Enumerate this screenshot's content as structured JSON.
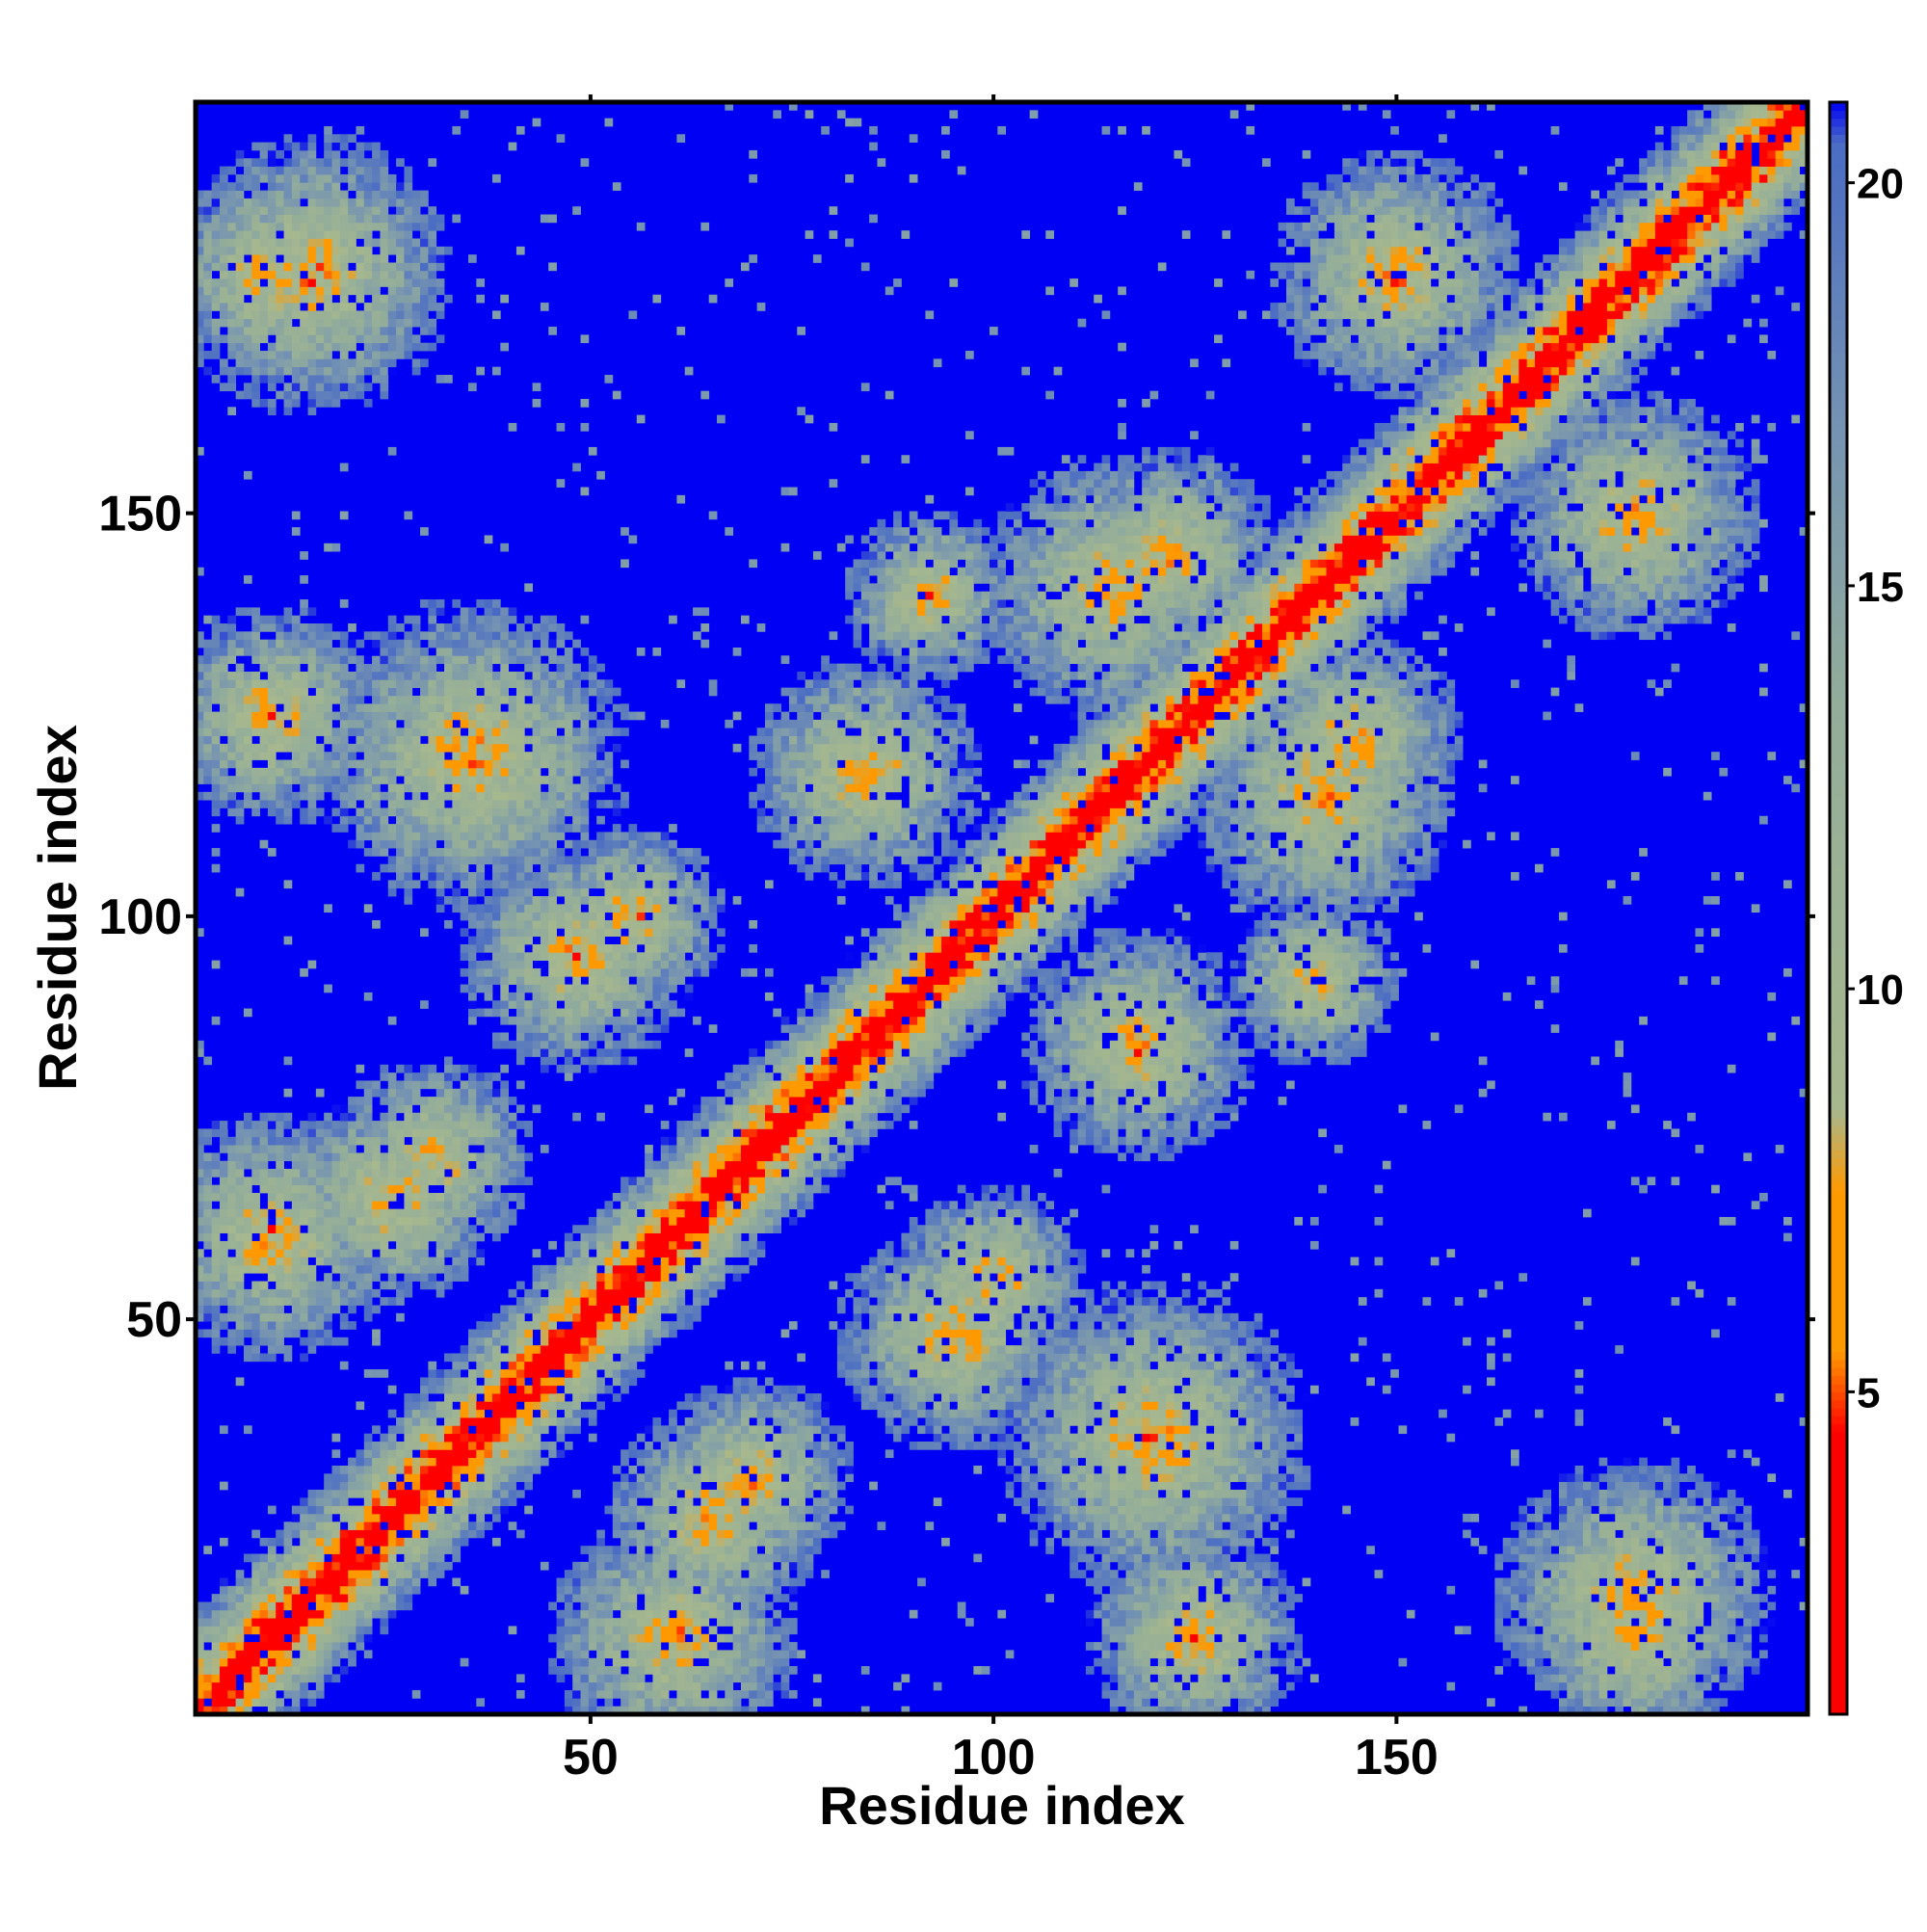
{
  "chart_data": {
    "type": "heatmap",
    "title": "",
    "xlabel": "Residue index",
    "ylabel": "Residue index",
    "x_range": [
      1,
      201
    ],
    "y_range": [
      1,
      201
    ],
    "x_ticks": [
      50,
      100,
      150
    ],
    "y_ticks": [
      50,
      100,
      150
    ],
    "x_tick_labels": [
      "50",
      "100",
      "150"
    ],
    "y_tick_labels": [
      "50",
      "100",
      "150"
    ],
    "colorbar": {
      "range": [
        1,
        21
      ],
      "ticks": [
        5,
        10,
        15,
        20
      ],
      "tick_labels": [
        "5",
        "10",
        "15",
        "20"
      ],
      "color_stops": [
        {
          "value": 1,
          "color": "#ff0000"
        },
        {
          "value": 4.5,
          "color": "#ff0000"
        },
        {
          "value": 5.5,
          "color": "#ff9900"
        },
        {
          "value": 7.5,
          "color": "#ff9900"
        },
        {
          "value": 8.5,
          "color": "#a7b88e"
        },
        {
          "value": 13.5,
          "color": "#93ad9a"
        },
        {
          "value": 17,
          "color": "#7593b2"
        },
        {
          "value": 20.5,
          "color": "#4a6cc4"
        },
        {
          "value": 21,
          "color": "#0000f5"
        }
      ]
    },
    "background_value": 21,
    "main_diagonal": {
      "from": 1,
      "to": 201
    },
    "contact_regions": [
      {
        "x": 84,
        "y": 118,
        "radius": 15
      },
      {
        "x": 118,
        "y": 84,
        "radius": 15
      },
      {
        "x": 115,
        "y": 141,
        "radius": 17
      },
      {
        "x": 141,
        "y": 115,
        "radius": 17
      },
      {
        "x": 150,
        "y": 180,
        "radius": 16
      },
      {
        "x": 180,
        "y": 150,
        "radius": 16
      },
      {
        "x": 145,
        "y": 122,
        "radius": 14
      },
      {
        "x": 122,
        "y": 145,
        "radius": 14
      },
      {
        "x": 15,
        "y": 180,
        "radius": 18
      },
      {
        "x": 180,
        "y": 15,
        "radius": 18
      },
      {
        "x": 35,
        "y": 120,
        "radius": 20
      },
      {
        "x": 120,
        "y": 35,
        "radius": 20
      },
      {
        "x": 48,
        "y": 95,
        "radius": 15
      },
      {
        "x": 95,
        "y": 48,
        "radius": 15
      },
      {
        "x": 10,
        "y": 60,
        "radius": 16
      },
      {
        "x": 60,
        "y": 10,
        "radius": 16
      },
      {
        "x": 25,
        "y": 65,
        "radius": 14
      },
      {
        "x": 65,
        "y": 25,
        "radius": 14
      },
      {
        "x": 100,
        "y": 55,
        "radius": 12
      },
      {
        "x": 55,
        "y": 100,
        "radius": 12
      },
      {
        "x": 92,
        "y": 140,
        "radius": 11
      },
      {
        "x": 140,
        "y": 92,
        "radius": 11
      },
      {
        "x": 180,
        "y": 10,
        "radius": 14
      },
      {
        "x": 10,
        "y": 180,
        "radius": 14
      },
      {
        "x": 125,
        "y": 10,
        "radius": 14
      },
      {
        "x": 10,
        "y": 125,
        "radius": 14
      },
      {
        "x": 70,
        "y": 30,
        "radius": 13
      },
      {
        "x": 30,
        "y": 70,
        "radius": 13
      }
    ]
  }
}
